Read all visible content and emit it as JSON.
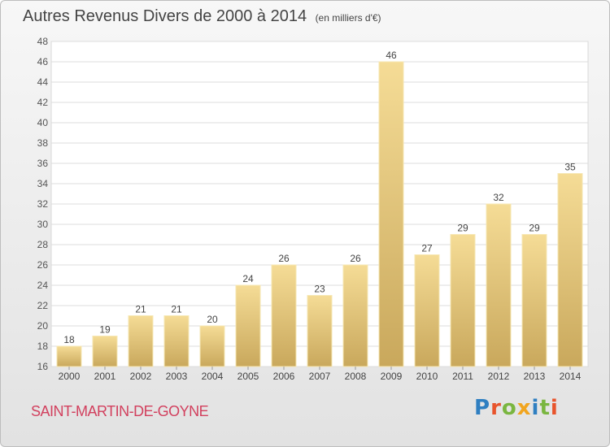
{
  "header": {
    "title": "Autres Revenus Divers de 2000 à 2014",
    "subtitle": "(en milliers d'€)"
  },
  "footer": {
    "commune": "SAINT-MARTIN-DE-GOYNE",
    "brand": "Proxiti"
  },
  "colors": {
    "bar_top": "#f5dc96",
    "bar_bottom": "#c9a85c",
    "commune_text": "#d2405e",
    "brand_letters": [
      "#2f7fc1",
      "#e8542c",
      "#7ab640",
      "#f1a51f",
      "#2f7fc1",
      "#7ab640",
      "#e8542c"
    ]
  },
  "chart_data": {
    "type": "bar",
    "title": "Autres Revenus Divers de 2000 à 2014",
    "subtitle": "(en milliers d'€)",
    "categories": [
      "2000",
      "2001",
      "2002",
      "2003",
      "2004",
      "2005",
      "2006",
      "2007",
      "2008",
      "2009",
      "2010",
      "2011",
      "2012",
      "2013",
      "2014"
    ],
    "values": [
      18,
      19,
      21,
      21,
      20,
      24,
      26,
      23,
      26,
      46,
      27,
      29,
      32,
      29,
      35
    ],
    "data_labels": [
      "18",
      "19",
      "21",
      "21",
      "20",
      "24",
      "26",
      "23",
      "26",
      "46",
      "27",
      "29",
      "32",
      "29",
      "35"
    ],
    "ylim": [
      16,
      48
    ],
    "yticks": [
      "16",
      "18",
      "20",
      "22",
      "24",
      "26",
      "28",
      "30",
      "32",
      "34",
      "36",
      "38",
      "40",
      "42",
      "44",
      "46",
      "48"
    ],
    "grid": true,
    "legend": "none"
  }
}
